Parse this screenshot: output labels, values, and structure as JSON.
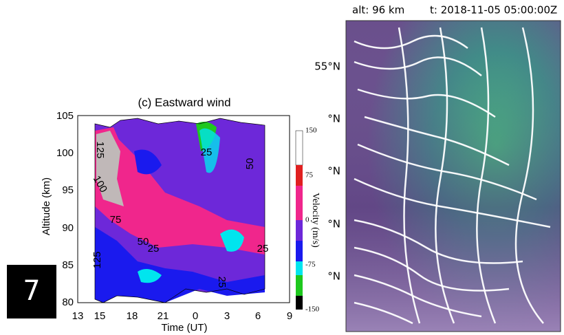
{
  "badge": "7",
  "left_plot": {
    "title": "(c) Eastward wind",
    "x_label": "Time (UT)",
    "y_label": "Altitude (km)",
    "x_ticks": [
      "13",
      "15",
      "18",
      "21",
      "0",
      "3",
      "6",
      "9"
    ],
    "y_ticks": [
      "105",
      "100",
      "95",
      "90",
      "85",
      "80"
    ],
    "colorbar_label": "Velocity (m/s)",
    "colorbar_ticks": [
      "150",
      "75",
      "0",
      "-75",
      "-150"
    ],
    "contour_labels": [
      "125",
      "100",
      "75",
      "50",
      "25",
      "25",
      "50",
      "25",
      "25",
      "125"
    ]
  },
  "right_map": {
    "altitude": "alt: 96 km",
    "time": "t: 2018-11-05 05:00:00Z",
    "lat_labels": [
      "55°N",
      "°N",
      "°N",
      "°N",
      "°N"
    ]
  }
}
